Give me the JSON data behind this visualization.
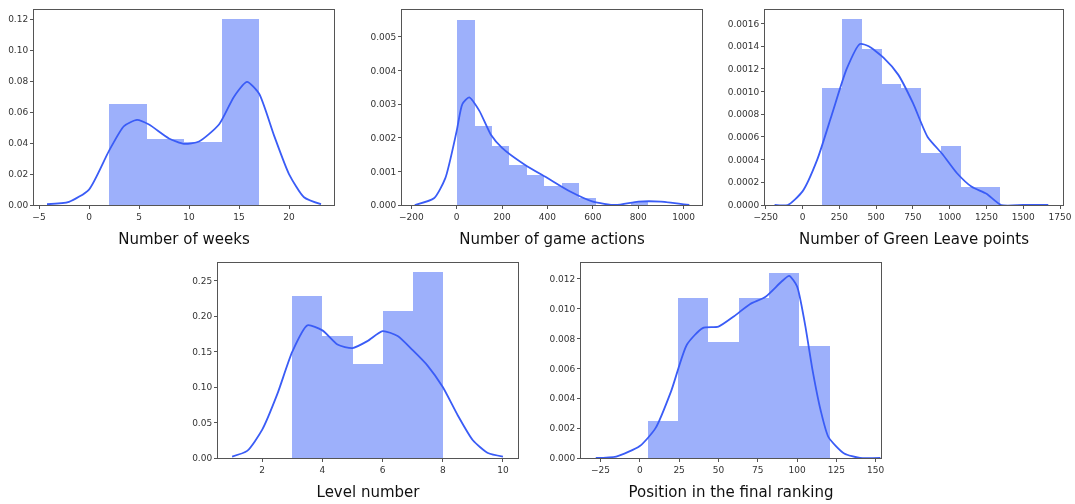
{
  "chart_data": [
    {
      "type": "histogram",
      "xlabel": "Number of weeks",
      "xlim": [
        -5.5,
        24.5
      ],
      "ylim": [
        0,
        0.126
      ],
      "xticks": [
        {
          "value": -5,
          "label": "−5"
        },
        0,
        5,
        10,
        15,
        20
      ],
      "yticks": [
        {
          "value": 0,
          "label": "0.00"
        },
        {
          "value": 0.02,
          "label": "0.02"
        },
        {
          "value": 0.04,
          "label": "0.04"
        },
        {
          "value": 0.06,
          "label": "0.06"
        },
        {
          "value": 0.08,
          "label": "0.08"
        },
        {
          "value": 0.1,
          "label": "0.10"
        },
        {
          "value": 0.12,
          "label": "0.12"
        }
      ],
      "series": [
        {
          "type": "histogram",
          "color": "#9db0fb",
          "bins": [
            2,
            5.75,
            9.5,
            13.25,
            17
          ],
          "values": [
            0.065,
            0.0425,
            0.041,
            0.12
          ]
        },
        {
          "type": "line",
          "color": "#3a5cf6",
          "x": [
            -4.2,
            -2,
            0,
            2,
            3.5,
            4.8,
            6,
            8,
            9.5,
            11,
            13,
            14.5,
            15.8,
            17,
            18.5,
            20,
            21.5,
            23.2
          ],
          "values": [
            0.0005,
            0.002,
            0.01,
            0.035,
            0.051,
            0.055,
            0.052,
            0.043,
            0.0395,
            0.041,
            0.052,
            0.07,
            0.0795,
            0.072,
            0.045,
            0.02,
            0.005,
            0.0005
          ]
        }
      ]
    },
    {
      "type": "histogram",
      "xlabel": "Number of game actions",
      "xlim": [
        -241,
        1081
      ],
      "ylim": [
        0,
        0.0058
      ],
      "xticks": [
        {
          "value": -200,
          "label": "−200"
        },
        0,
        200,
        400,
        600,
        800,
        1000
      ],
      "yticks": [
        {
          "value": 0,
          "label": "0.000"
        },
        {
          "value": 0.001,
          "label": "0.001"
        },
        {
          "value": 0.002,
          "label": "0.002"
        },
        {
          "value": 0.003,
          "label": "0.003"
        },
        {
          "value": 0.004,
          "label": "0.004"
        },
        {
          "value": 0.005,
          "label": "0.005"
        }
      ],
      "series": [
        {
          "type": "histogram",
          "color": "#9db0fb",
          "bins": [
            3,
            79,
            156,
            232,
            309,
            385,
            462,
            538,
            615,
            691,
            768,
            844
          ],
          "values": [
            0.0055,
            0.00235,
            0.00175,
            0.00118,
            0.0009,
            0.00058,
            0.00065,
            0.0002,
            0,
            0,
            0.0001
          ]
        },
        {
          "type": "line",
          "color": "#3a5cf6",
          "x": [
            -185,
            -100,
            -50,
            0,
            25,
            55,
            100,
            150,
            200,
            300,
            400,
            500,
            600,
            700,
            800,
            900,
            1025
          ],
          "values": [
            0,
            0.0002,
            0.0008,
            0.0022,
            0.003,
            0.0032,
            0.0028,
            0.0021,
            0.0017,
            0.0012,
            0.0008,
            0.0004,
            0.0001,
            0,
            0.0001,
            0.0001,
            0
          ]
        }
      ]
    },
    {
      "type": "histogram",
      "xlabel": "Number of Green Leave points",
      "xlim": [
        -255,
        1770
      ],
      "ylim": [
        0,
        0.00172
      ],
      "xticks": [
        {
          "value": -250,
          "label": "−250"
        },
        0,
        250,
        500,
        750,
        1000,
        1250,
        1500,
        1750
      ],
      "yticks": [
        {
          "value": 0,
          "label": "0.0000"
        },
        {
          "value": 0.0002,
          "label": "0.0002"
        },
        {
          "value": 0.0004,
          "label": "0.0004"
        },
        {
          "value": 0.0006,
          "label": "0.0006"
        },
        {
          "value": 0.0008,
          "label": "0.0008"
        },
        {
          "value": 0.001,
          "label": "0.0010"
        },
        {
          "value": 0.0012,
          "label": "0.0012"
        },
        {
          "value": 0.0014,
          "label": "0.0014"
        },
        {
          "value": 0.0016,
          "label": "0.0016"
        }
      ],
      "series": [
        {
          "type": "histogram",
          "color": "#9db0fb",
          "bins": [
            135,
            269,
            404,
            538,
            672,
            806,
            941,
            1075,
            1209,
            1343
          ],
          "values": [
            0.00103,
            0.00164,
            0.00138,
            0.00107,
            0.00103,
            0.00046,
            0.00052,
            0.00016,
            0.00016
          ]
        },
        {
          "type": "line",
          "color": "#3a5cf6",
          "x": [
            -190,
            -100,
            0,
            100,
            200,
            300,
            390,
            450,
            550,
            650,
            750,
            850,
            950,
            1050,
            1150,
            1250,
            1350,
            1500,
            1670
          ],
          "values": [
            0,
            0,
            0.00012,
            0.0004,
            0.0008,
            0.0012,
            0.00142,
            0.0014,
            0.0013,
            0.00115,
            0.0009,
            0.0006,
            0.00045,
            0.00028,
            0.00016,
            0.0001,
            0,
            0,
            0
          ]
        }
      ]
    },
    {
      "type": "histogram",
      "xlabel": "Level number",
      "xlim": [
        0.53,
        10.5
      ],
      "ylim": [
        0,
        0.275
      ],
      "xticks": [
        2,
        4,
        6,
        8,
        10
      ],
      "yticks": [
        {
          "value": 0,
          "label": "0.00"
        },
        {
          "value": 0.05,
          "label": "0.05"
        },
        {
          "value": 0.1,
          "label": "0.10"
        },
        {
          "value": 0.15,
          "label": "0.15"
        },
        {
          "value": 0.2,
          "label": "0.20"
        },
        {
          "value": 0.25,
          "label": "0.25"
        }
      ],
      "series": [
        {
          "type": "histogram",
          "color": "#9db0fb",
          "bins": [
            3,
            4,
            5,
            6,
            7,
            8
          ],
          "values": [
            0.228,
            0.172,
            0.132,
            0.208,
            0.262
          ]
        },
        {
          "type": "line",
          "color": "#3a5cf6",
          "x": [
            1,
            1.5,
            2,
            2.5,
            3,
            3.5,
            4,
            4.5,
            5,
            5.5,
            6,
            6.5,
            7,
            7.5,
            8,
            8.5,
            9,
            9.5,
            10
          ],
          "values": [
            0.002,
            0.01,
            0.04,
            0.09,
            0.15,
            0.187,
            0.18,
            0.16,
            0.155,
            0.165,
            0.179,
            0.172,
            0.152,
            0.13,
            0.1,
            0.06,
            0.025,
            0.007,
            0.002
          ]
        }
      ]
    },
    {
      "type": "histogram",
      "xlabel": "Position in the final ranking",
      "xlim": [
        -37.4,
        153.4
      ],
      "ylim": [
        0,
        0.01306
      ],
      "xticks": [
        {
          "value": -25,
          "label": "−25"
        },
        0,
        25,
        50,
        75,
        100,
        125,
        150
      ],
      "yticks": [
        {
          "value": 0,
          "label": "0.000"
        },
        {
          "value": 0.002,
          "label": "0.002"
        },
        {
          "value": 0.004,
          "label": "0.004"
        },
        {
          "value": 0.006,
          "label": "0.006"
        },
        {
          "value": 0.008,
          "label": "0.008"
        },
        {
          "value": 0.01,
          "label": "0.010"
        },
        {
          "value": 0.012,
          "label": "0.012"
        }
      ],
      "series": [
        {
          "type": "histogram",
          "color": "#9db0fb",
          "bins": [
            4.9,
            24.2,
            43.5,
            62.8,
            82.1,
            101.4,
            120.7
          ],
          "values": [
            0.0025,
            0.0107,
            0.0078,
            0.0107,
            0.0124,
            0.0075
          ]
        },
        {
          "type": "line",
          "color": "#3a5cf6",
          "x": [
            -28,
            -15,
            0,
            10,
            20,
            30,
            40,
            50,
            60,
            70,
            80,
            90,
            95,
            100,
            105,
            110,
            115,
            120,
            130,
            140,
            153
          ],
          "values": [
            0,
            0.0001,
            0.0008,
            0.002,
            0.0045,
            0.0076,
            0.0087,
            0.0088,
            0.0095,
            0.0103,
            0.0108,
            0.0118,
            0.0122,
            0.0115,
            0.009,
            0.0058,
            0.0032,
            0.0014,
            0.0003,
            0,
            0
          ]
        }
      ]
    }
  ]
}
